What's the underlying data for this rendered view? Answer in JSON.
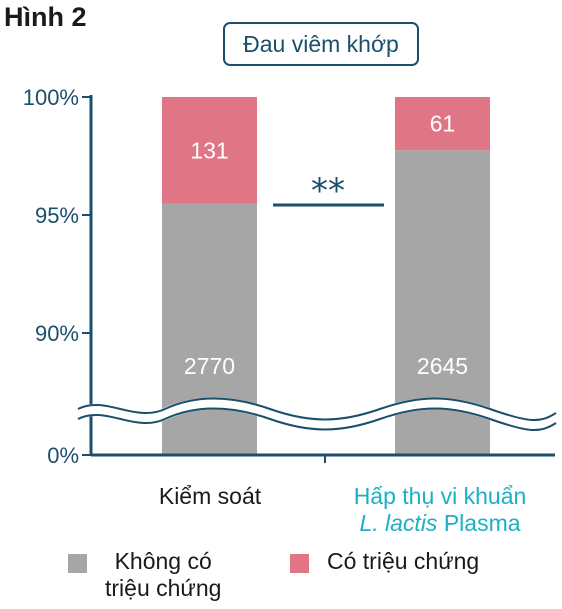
{
  "figure_label": "Hình 2",
  "chart_data": {
    "type": "bar",
    "stacked": true,
    "title": "Đau viêm khớp",
    "categories": [
      {
        "lines": [
          "Kiểm soát"
        ]
      },
      {
        "lines": [
          "Hấp thụ vi khuẩn",
          "L. lactis Plasma"
        ]
      }
    ],
    "series": [
      {
        "name": "Không có triệu chứng",
        "legend_lines": [
          "Không có",
          "triệu chứng"
        ],
        "values": [
          2770,
          2645
        ],
        "color": "#a6a6a6"
      },
      {
        "name": "Có triệu chứng",
        "legend_lines": [
          "Có triệu chứng"
        ],
        "values": [
          131,
          61
        ],
        "color": "#e07586"
      }
    ],
    "y_unit": "percent of total",
    "y_ticks": [
      "0%",
      "90%",
      "95%",
      "100%"
    ],
    "y_axis_break": true,
    "ylim_upper": [
      88,
      100
    ],
    "significance": "**",
    "colors": {
      "axis": "#1b4f6b",
      "highlight_text": "#1bb1c4"
    }
  }
}
